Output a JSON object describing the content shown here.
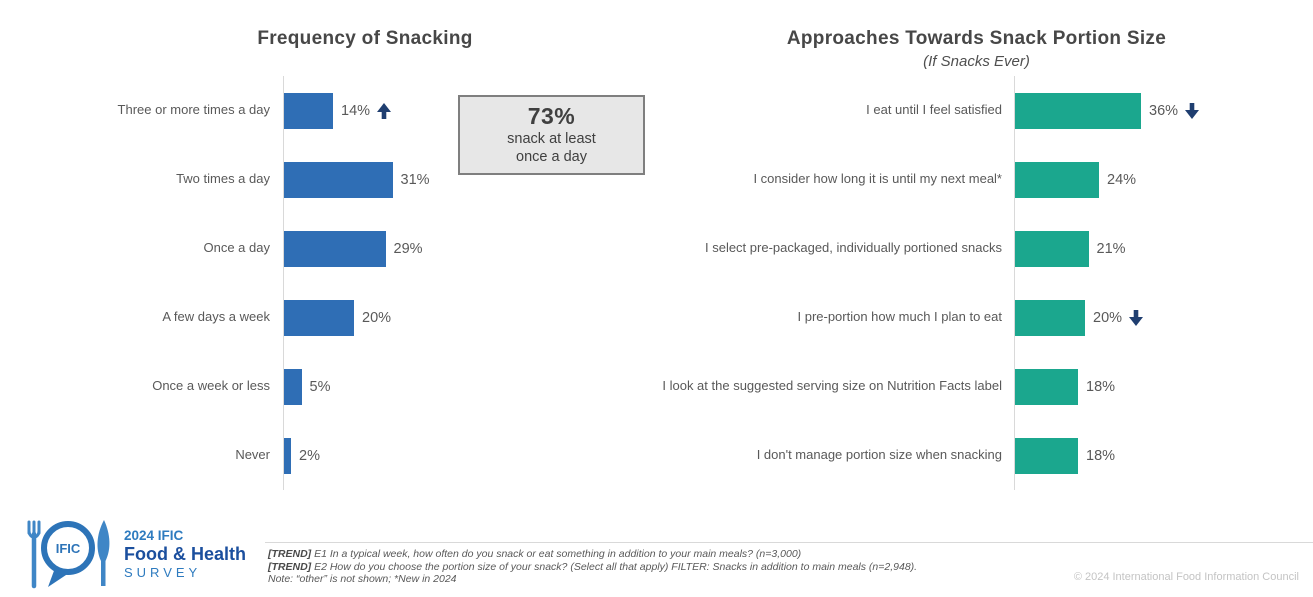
{
  "chart_data": [
    {
      "type": "bar",
      "orientation": "horizontal",
      "title": "Frequency of Snacking",
      "subtitle": "",
      "bar_color": "#2f6eb5",
      "unit": "%",
      "xlim": [
        0,
        40
      ],
      "grid": false,
      "categories": [
        "Three or more times a day",
        "Two times a day",
        "Once a day",
        "A few days a week",
        "Once a week or less",
        "Never"
      ],
      "values": [
        14,
        31,
        29,
        20,
        5,
        2
      ],
      "rows": [
        {
          "label": "Three or more times a day",
          "value": 14,
          "value_label": "14%",
          "trend": "up"
        },
        {
          "label": "Two times a day",
          "value": 31,
          "value_label": "31%",
          "trend": null
        },
        {
          "label": "Once a day",
          "value": 29,
          "value_label": "29%",
          "trend": null
        },
        {
          "label": "A few days a week",
          "value": 20,
          "value_label": "20%",
          "trend": null
        },
        {
          "label": "Once a week or less",
          "value": 5,
          "value_label": "5%",
          "trend": null
        },
        {
          "label": "Never",
          "value": 2,
          "value_label": "2%",
          "trend": null
        }
      ]
    },
    {
      "type": "bar",
      "orientation": "horizontal",
      "title": "Approaches Towards Snack Portion Size",
      "subtitle": "(If Snacks Ever)",
      "bar_color": "#1ba78e",
      "unit": "%",
      "xlim": [
        0,
        40
      ],
      "grid": false,
      "categories": [
        "I eat until I feel satisfied",
        "I consider how long it is until my next meal*",
        "I select pre-packaged, individually portioned snacks",
        "I pre-portion how much I plan to eat",
        "I look at the suggested serving size on Nutrition Facts label",
        "I don't manage portion size when snacking"
      ],
      "values": [
        36,
        24,
        21,
        20,
        18,
        18
      ],
      "rows": [
        {
          "label": "I eat until I feel satisfied",
          "value": 36,
          "value_label": "36%",
          "trend": "down"
        },
        {
          "label": "I consider how long it is until my next meal*",
          "value": 24,
          "value_label": "24%",
          "trend": null
        },
        {
          "label": "I select pre-packaged, individually portioned snacks",
          "value": 21,
          "value_label": "21%",
          "trend": null
        },
        {
          "label": "I pre-portion how much I plan to eat",
          "value": 20,
          "value_label": "20%",
          "trend": "down"
        },
        {
          "label": "I look at the suggested serving size on Nutrition Facts label",
          "value": 18,
          "value_label": "18%",
          "trend": null
        },
        {
          "label": "I don't manage portion size when snacking",
          "value": 18,
          "value_label": "18%",
          "trend": null
        }
      ]
    }
  ],
  "callout": {
    "headline": "73%",
    "line1": "snack at least",
    "line2": "once a day"
  },
  "footer": {
    "logo": {
      "badge_text": "IFIC",
      "line1": "2024 IFIC",
      "line2": "Food & Health",
      "line3": "SURVEY"
    },
    "notes": [
      {
        "prefix": "[TREND]",
        "text": " E1 In a typical week, how often do you snack or eat something in addition to your main meals? (n=3,000)"
      },
      {
        "prefix": "[TREND]",
        "text": " E2 How do you choose the portion size of your snack? (Select all that apply) FILTER: Snacks in addition to main meals (n=2,948)."
      },
      {
        "prefix": "",
        "text": "Note: “other” is not shown; *New in 2024"
      }
    ],
    "copyright": "© 2024 International Food Information Council"
  },
  "colors": {
    "bar_blue": "#2f6eb5",
    "bar_teal": "#1ba78e",
    "trend_arrow": "#1f3e70",
    "title_text": "#474747",
    "label_text": "#595959",
    "callout_bg": "#e7e7e7",
    "callout_border": "#7f7f7f",
    "axis_line": "#d9d9d9"
  }
}
